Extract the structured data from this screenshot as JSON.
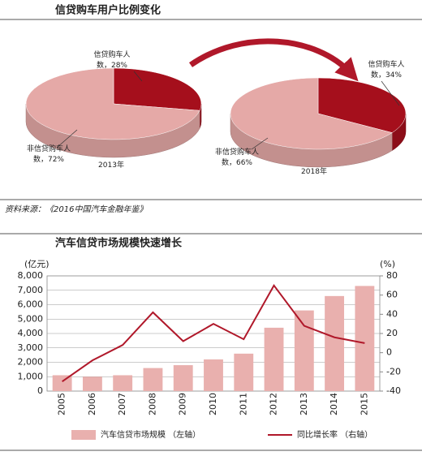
{
  "source": "资料来源：《2016中国汽车金融年鉴》",
  "chart_data": [
    {
      "type": "pie",
      "title": "信贷购车用户比例变化",
      "pies": [
        {
          "name": "2013年",
          "values": [
            28,
            72
          ],
          "value_labels": [
            "信贷购车人数，28%",
            "非信贷购车人数，72%"
          ],
          "colors": [
            "#a50f1c",
            "#e5a9a7"
          ]
        },
        {
          "name": "2018年",
          "values": [
            34,
            66
          ],
          "value_labels": [
            "信贷购车人数，34%",
            "非信贷购车人数，66%"
          ],
          "colors": [
            "#a50f1c",
            "#e5a9a7"
          ]
        }
      ]
    },
    {
      "type": "bar",
      "title": "汽车信贷市场规模快速增长",
      "ylabel": "(亿元)",
      "y2label": "(%)",
      "categories": [
        "2005",
        "2006",
        "2007",
        "2008",
        "2009",
        "2010",
        "2011",
        "2012",
        "2013",
        "2014",
        "2015"
      ],
      "series": [
        {
          "name": "汽车信贷市场规模 （左轴）",
          "type": "bar",
          "color": "#e9b0ae",
          "values": [
            1100,
            1000,
            1100,
            1600,
            1800,
            2200,
            2600,
            4400,
            5600,
            6600,
            7300
          ]
        },
        {
          "name": "同比增长率 （右轴）",
          "type": "line",
          "axis": "y2",
          "color": "#b0182a",
          "values": [
            -30,
            -8,
            8,
            42,
            12,
            30,
            14,
            70,
            28,
            16,
            10
          ]
        }
      ],
      "ylim": [
        0,
        8000
      ],
      "yticks": [
        0,
        {
          "value": 1000,
          "label": "1,000"
        },
        {
          "value": 2000,
          "label": "2,000"
        },
        {
          "value": 3000,
          "label": "3,000"
        },
        {
          "value": 4000,
          "label": "4,000"
        },
        {
          "value": 5000,
          "label": "5,000"
        },
        {
          "value": 6000,
          "label": "6,000"
        },
        {
          "value": 7000,
          "label": "7,000"
        },
        {
          "value": 8000,
          "label": "8,000"
        }
      ],
      "y2lim": [
        -40,
        80
      ],
      "y2ticks": [
        -40,
        -20,
        0,
        20,
        40,
        60,
        80
      ],
      "grid": true
    }
  ]
}
